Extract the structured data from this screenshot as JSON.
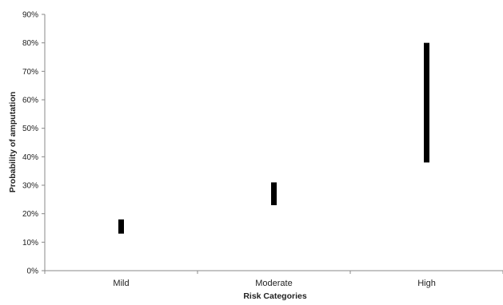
{
  "chart_data": {
    "type": "range-bar",
    "title": "",
    "xlabel": "Risk Categories",
    "ylabel": "Probability of amputation",
    "categories": [
      "Mild",
      "Moderate",
      "High"
    ],
    "series": [
      {
        "low": [
          13,
          23,
          38
        ],
        "high": [
          18,
          31,
          80
        ]
      }
    ],
    "ylim": [
      0,
      90
    ],
    "ytick_step": 10,
    "ytick_labels": [
      "0%",
      "10%",
      "20%",
      "30%",
      "40%",
      "50%",
      "60%",
      "70%",
      "80%",
      "90%"
    ],
    "grid": false,
    "legend": "none",
    "bar_color": "#000000",
    "axis_color": "#888888"
  }
}
